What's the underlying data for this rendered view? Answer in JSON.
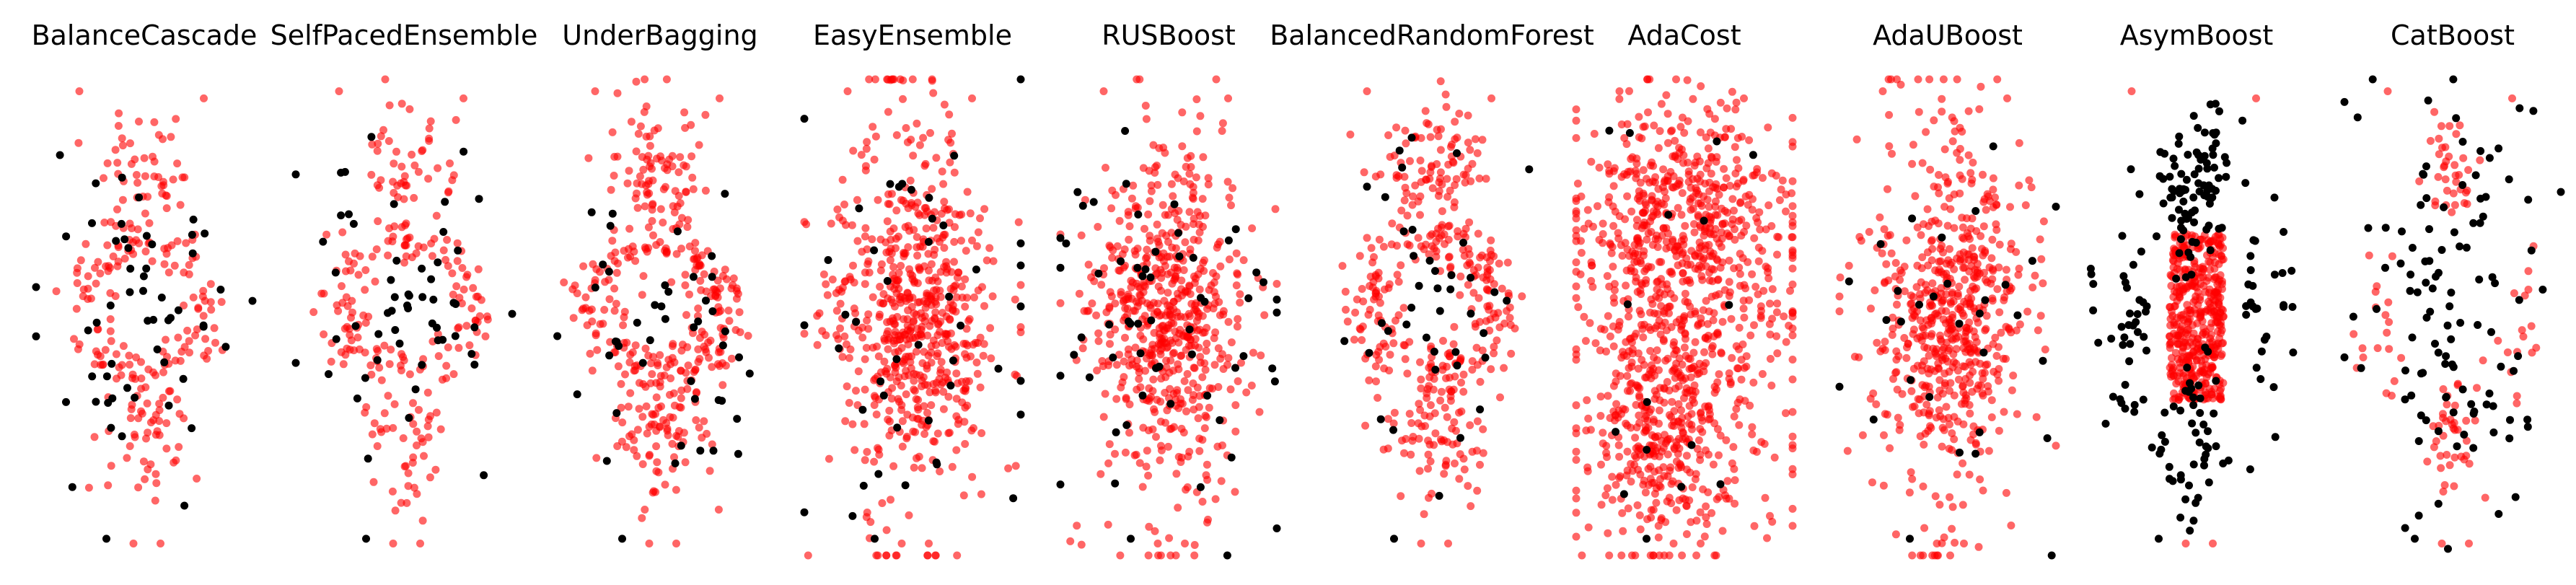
{
  "colors": {
    "minority": "#ff0000",
    "majority": "#000000",
    "background": "#ffffff"
  },
  "chart_data": [
    {
      "type": "scatter",
      "title": "BalanceCascade",
      "pattern": "ring",
      "n_red": 230,
      "n_black": 55,
      "red_opacity": 0.6
    },
    {
      "type": "scatter",
      "title": "SelfPacedEnsemble",
      "pattern": "ring",
      "n_red": 230,
      "n_black": 55,
      "red_opacity": 0.6
    },
    {
      "type": "scatter",
      "title": "UnderBagging",
      "pattern": "ring-dense",
      "n_red": 380,
      "n_black": 45,
      "red_opacity": 0.6
    },
    {
      "type": "scatter",
      "title": "EasyEnsemble",
      "pattern": "filled",
      "n_red": 620,
      "n_black": 45,
      "red_opacity": 0.6
    },
    {
      "type": "scatter",
      "title": "RUSBoost",
      "pattern": "filled",
      "n_red": 600,
      "n_black": 60,
      "red_opacity": 0.6
    },
    {
      "type": "scatter",
      "title": "BalancedRandomForest",
      "pattern": "ring-dense",
      "n_red": 400,
      "n_black": 40,
      "red_opacity": 0.6
    },
    {
      "type": "scatter",
      "title": "AdaCost",
      "pattern": "dense",
      "n_red": 1100,
      "n_black": 15,
      "red_opacity": 0.6
    },
    {
      "type": "scatter",
      "title": "AdaUBoost",
      "pattern": "filled",
      "n_red": 600,
      "n_black": 30,
      "red_opacity": 0.6
    },
    {
      "type": "scatter",
      "title": "AsymBoost",
      "pattern": "core",
      "n_red": 450,
      "n_black": 210,
      "red_opacity": 0.6
    },
    {
      "type": "scatter",
      "title": "CatBoost",
      "pattern": "sparse",
      "n_red": 110,
      "n_black": 110,
      "red_opacity": 0.6
    }
  ]
}
